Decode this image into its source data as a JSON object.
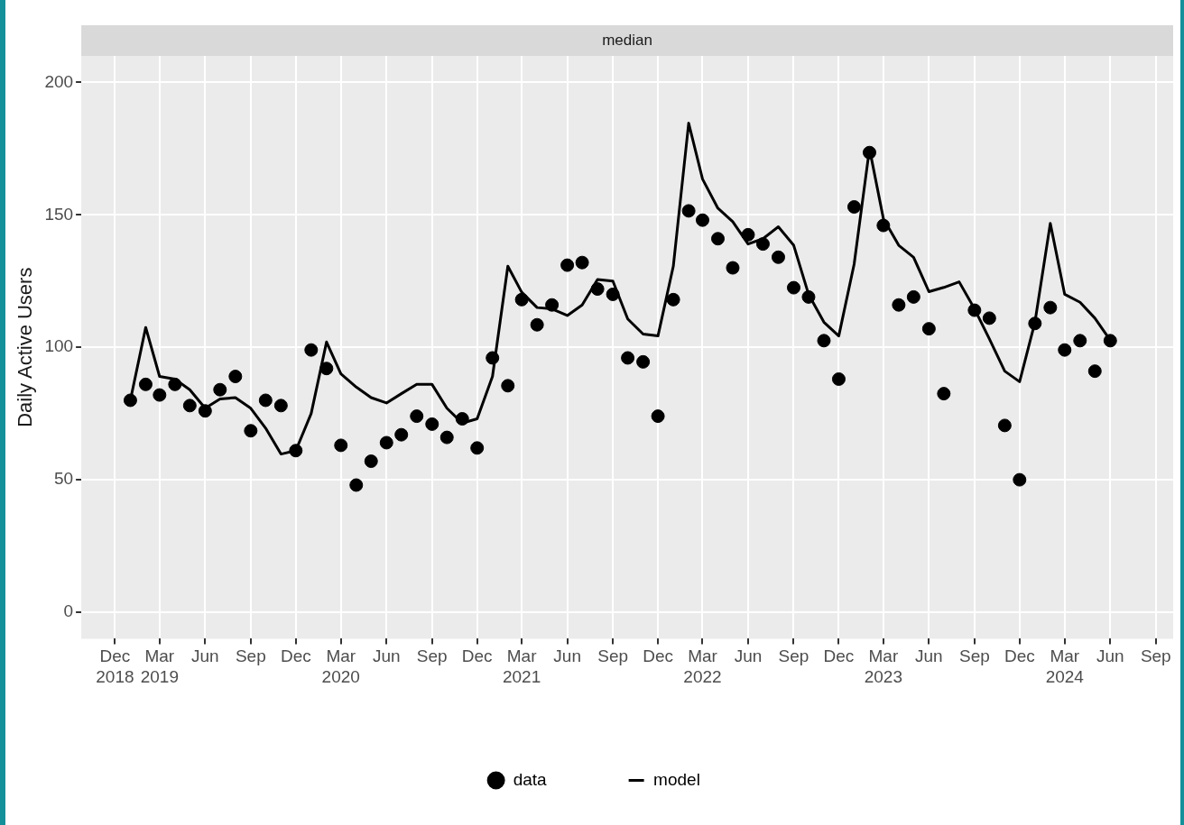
{
  "chart_data": {
    "type": "line",
    "title": "median",
    "ylabel": "Daily Active Users",
    "x": [
      "2019-01",
      "2019-02",
      "2019-03",
      "2019-04",
      "2019-05",
      "2019-06",
      "2019-07",
      "2019-08",
      "2019-09",
      "2019-10",
      "2019-11",
      "2019-12",
      "2020-01",
      "2020-02",
      "2020-03",
      "2020-04",
      "2020-05",
      "2020-06",
      "2020-07",
      "2020-08",
      "2020-09",
      "2020-10",
      "2020-11",
      "2020-12",
      "2021-01",
      "2021-02",
      "2021-03",
      "2021-04",
      "2021-05",
      "2021-06",
      "2021-07",
      "2021-08",
      "2021-09",
      "2021-10",
      "2021-11",
      "2021-12",
      "2022-01",
      "2022-02",
      "2022-03",
      "2022-04",
      "2022-05",
      "2022-06",
      "2022-07",
      "2022-08",
      "2022-09",
      "2022-10",
      "2022-11",
      "2022-12",
      "2023-01",
      "2023-02",
      "2023-03",
      "2023-04",
      "2023-05",
      "2023-06",
      "2023-07",
      "2023-08",
      "2023-09",
      "2023-10",
      "2023-11",
      "2023-12",
      "2024-01",
      "2024-02",
      "2024-03",
      "2024-04",
      "2024-05",
      "2024-06"
    ],
    "series": [
      {
        "name": "data",
        "type": "scatter",
        "marker": "circle",
        "color": "#000000",
        "values": [
          80,
          86,
          82,
          86,
          78,
          76,
          84,
          89,
          68.5,
          80,
          78,
          61,
          99,
          92,
          63,
          48,
          57,
          64,
          67,
          74,
          71,
          66,
          73,
          62,
          96,
          85.5,
          118,
          108.5,
          116,
          131,
          132,
          122,
          120,
          96,
          94.5,
          74,
          118,
          151.5,
          148,
          141,
          130,
          142.5,
          139,
          134,
          122.5,
          119,
          102.5,
          88,
          153,
          173.5,
          146,
          116,
          119,
          107,
          82.5,
          null,
          114,
          111,
          70.5,
          50,
          109,
          115,
          99,
          102.5,
          91,
          102.5
        ]
      },
      {
        "name": "model",
        "type": "line",
        "marker": "none",
        "line_style": "solid",
        "color": "#000000",
        "values": [
          80,
          107.5,
          89,
          88,
          84,
          77,
          80.5,
          81,
          77,
          69.5,
          59.7,
          61,
          75,
          102,
          90,
          85,
          81,
          79,
          82.5,
          86,
          86,
          77,
          71.4,
          73,
          89,
          130.6,
          120.8,
          115,
          114.5,
          112,
          116,
          125.6,
          125,
          110.7,
          105,
          104.3,
          130.6,
          184.6,
          163.5,
          152.5,
          147.4,
          139,
          141,
          145.5,
          138.5,
          120,
          109.5,
          104.3,
          131.4,
          175,
          148.6,
          138.5,
          134,
          121,
          122.6,
          124.7,
          114.5,
          103.2,
          91,
          87,
          109.5,
          146.8,
          120,
          117,
          111,
          102.7
        ]
      }
    ],
    "xlim": [
      "2018-09-24",
      "2024-10-06"
    ],
    "xticks": [
      {
        "value": "2018-12-01",
        "label": "Dec\n2018"
      },
      {
        "value": "2019-03-01",
        "label": "Mar\n2019"
      },
      {
        "value": "2019-06-01",
        "label": "Jun"
      },
      {
        "value": "2019-09-01",
        "label": "Sep"
      },
      {
        "value": "2019-12-01",
        "label": "Dec"
      },
      {
        "value": "2020-03-01",
        "label": "Mar\n2020"
      },
      {
        "value": "2020-06-01",
        "label": "Jun"
      },
      {
        "value": "2020-09-01",
        "label": "Sep"
      },
      {
        "value": "2020-12-01",
        "label": "Dec"
      },
      {
        "value": "2021-03-01",
        "label": "Mar\n2021"
      },
      {
        "value": "2021-06-01",
        "label": "Jun"
      },
      {
        "value": "2021-09-01",
        "label": "Sep"
      },
      {
        "value": "2021-12-01",
        "label": "Dec"
      },
      {
        "value": "2022-03-01",
        "label": "Mar\n2022"
      },
      {
        "value": "2022-06-01",
        "label": "Jun"
      },
      {
        "value": "2022-09-01",
        "label": "Sep"
      },
      {
        "value": "2022-12-01",
        "label": "Dec"
      },
      {
        "value": "2023-03-01",
        "label": "Mar\n2023"
      },
      {
        "value": "2023-06-01",
        "label": "Jun"
      },
      {
        "value": "2023-09-01",
        "label": "Sep"
      },
      {
        "value": "2023-12-01",
        "label": "Dec"
      },
      {
        "value": "2024-03-01",
        "label": "Mar\n2024"
      },
      {
        "value": "2024-06-01",
        "label": "Jun"
      },
      {
        "value": "2024-09-01",
        "label": "Sep"
      }
    ],
    "ylim": [
      -10,
      210
    ],
    "yticks": [
      0,
      50,
      100,
      150,
      200
    ],
    "grid": true,
    "legend": "bottom"
  }
}
